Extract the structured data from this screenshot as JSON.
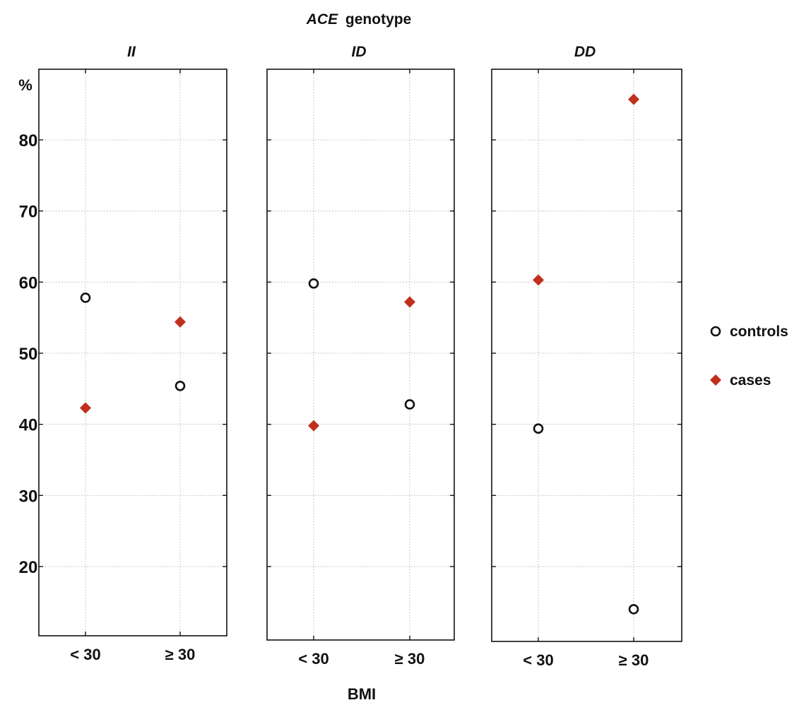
{
  "chart_data": {
    "type": "scatter",
    "title_prefix": "ACE",
    "title_suffix": "genotype",
    "xlabel": "BMI",
    "ylabel": "%",
    "categories": [
      "< 30",
      "≥ 30"
    ],
    "y_ticks": [
      20,
      30,
      40,
      50,
      60,
      70,
      80
    ],
    "grid": true,
    "legend_position": "right",
    "colors": {
      "controls": "#111111",
      "cases": "#c0301c"
    },
    "panels": [
      {
        "name": "II",
        "series": [
          {
            "name": "controls",
            "marker": "circle",
            "values": [
              57.8,
              45.4
            ]
          },
          {
            "name": "cases",
            "marker": "diamond",
            "values": [
              42.3,
              54.4
            ]
          }
        ]
      },
      {
        "name": "ID",
        "series": [
          {
            "name": "controls",
            "marker": "circle",
            "values": [
              59.8,
              42.8
            ]
          },
          {
            "name": "cases",
            "marker": "diamond",
            "values": [
              39.8,
              57.2
            ]
          }
        ]
      },
      {
        "name": "DD",
        "series": [
          {
            "name": "controls",
            "marker": "circle",
            "values": [
              39.4,
              14.0
            ]
          },
          {
            "name": "cases",
            "marker": "diamond",
            "values": [
              60.3,
              85.7
            ]
          }
        ]
      }
    ]
  }
}
